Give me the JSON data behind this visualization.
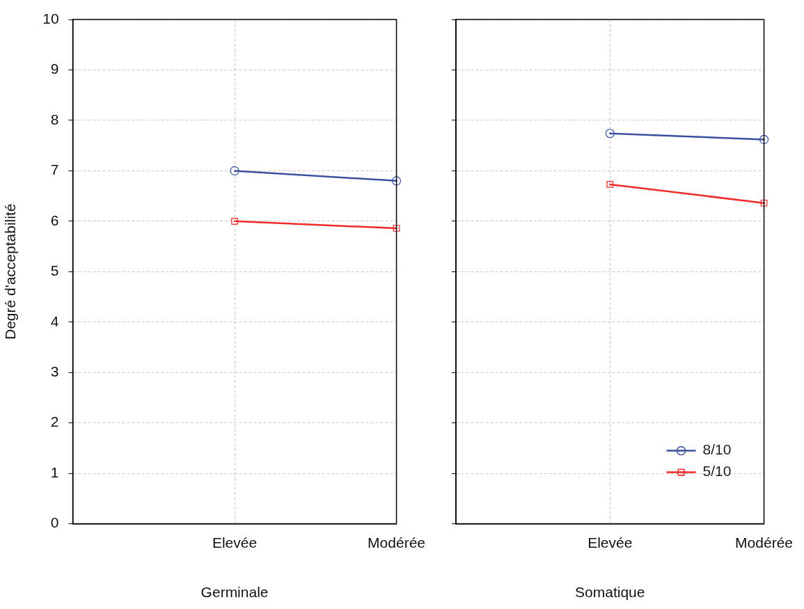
{
  "chart_data": [
    {
      "type": "line",
      "xlabel": "Germinale",
      "ylabel": "Degré d'acceptabilité",
      "categories": [
        "Elevée",
        "Modérée"
      ],
      "series": [
        {
          "color": "#3a4fa0",
          "marker": "circle",
          "values": [
            7.0,
            6.8
          ]
        },
        {
          "color": "#ee2a2a",
          "marker": "square",
          "values": [
            6.0,
            5.86
          ]
        }
      ],
      "ylim": [
        0,
        10
      ],
      "yticks": [
        0,
        1,
        2,
        3,
        4,
        5,
        6,
        7,
        8,
        9,
        10
      ],
      "grid": true
    },
    {
      "type": "line",
      "xlabel": "Somatique",
      "categories": [
        "Elevée",
        "Modérée"
      ],
      "series": [
        {
          "name": "8/10",
          "color": "#3a4fa0",
          "marker": "circle",
          "values": [
            7.74,
            7.62
          ]
        },
        {
          "name": "5/10",
          "color": "#ee2a2a",
          "marker": "square",
          "values": [
            6.73,
            6.36
          ]
        }
      ],
      "ylim": [
        0,
        10
      ],
      "yticks": [
        0,
        1,
        2,
        3,
        4,
        5,
        6,
        7,
        8,
        9,
        10
      ],
      "grid": true,
      "tick_labels": "x",
      "legend": "bottom right"
    }
  ]
}
